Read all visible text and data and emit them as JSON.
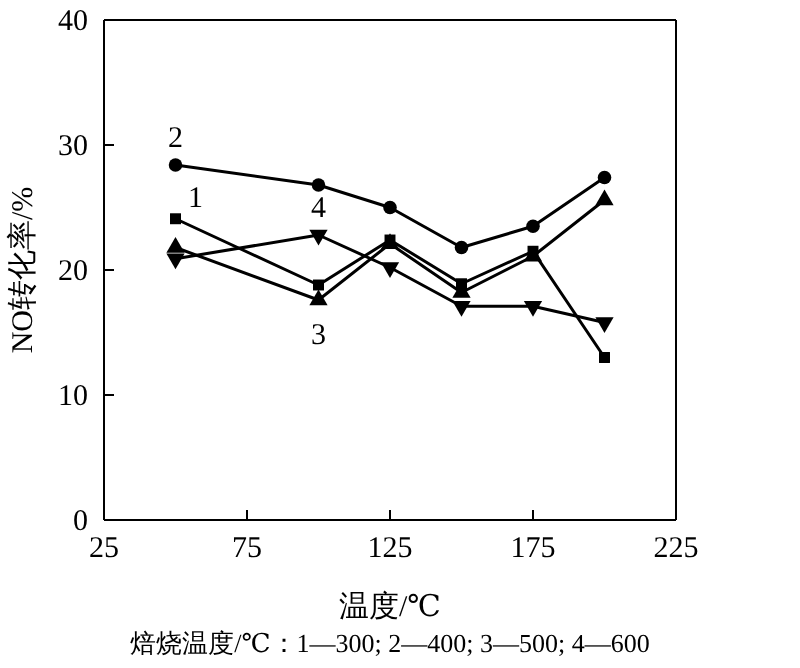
{
  "chart_data": {
    "type": "line",
    "xlabel": "温度/℃",
    "ylabel": "NO转化率/%",
    "x": [
      50,
      100,
      125,
      150,
      175,
      200
    ],
    "xlim": [
      25,
      225
    ],
    "xticks": [
      25,
      75,
      125,
      175,
      225
    ],
    "ylim": [
      0,
      40
    ],
    "yticks": [
      0,
      10,
      20,
      30,
      40
    ],
    "grid": false,
    "line_style": "solid",
    "annotations": [
      "焙烧温度/℃：1—300; 2—400; 3—500; 4—600"
    ],
    "series": [
      {
        "name": "1",
        "color": "#000000",
        "marker": "square",
        "values": [
          24.1,
          18.8,
          22.4,
          18.9,
          21.5,
          13.0
        ]
      },
      {
        "name": "2",
        "color": "#000000",
        "marker": "circle",
        "values": [
          28.4,
          26.8,
          25.0,
          21.8,
          23.5,
          27.4
        ]
      },
      {
        "name": "3",
        "color": "#000000",
        "marker": "triangle",
        "values": [
          21.8,
          17.6,
          22.1,
          18.2,
          21.1,
          25.6
        ]
      },
      {
        "name": "4",
        "color": "#000000",
        "marker": "triangle-down",
        "values": [
          20.9,
          22.8,
          20.2,
          17.1,
          17.1,
          15.8
        ]
      }
    ]
  }
}
